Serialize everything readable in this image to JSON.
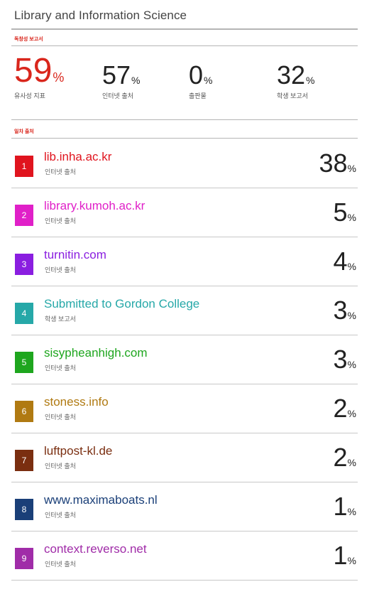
{
  "document": {
    "title": "Library and Information Science"
  },
  "summary": {
    "section_label": "독창성 보고서",
    "similarity": {
      "value": "59",
      "unit": "%",
      "label": "유사성 지표"
    },
    "internet": {
      "value": "57",
      "unit": "%",
      "label": "인터넷 출처"
    },
    "publications": {
      "value": "0",
      "unit": "%",
      "label": "출판물"
    },
    "student": {
      "value": "32",
      "unit": "%",
      "label": "학생 보고서"
    }
  },
  "sources_section_label": "일차 출처",
  "sources": [
    {
      "index": "1",
      "name": "lib.inha.ac.kr",
      "type": "인터넷 출처",
      "percent": "38",
      "color": "#e0141e"
    },
    {
      "index": "2",
      "name": "library.kumoh.ac.kr",
      "type": "인터넷 출처",
      "percent": "5",
      "color": "#e020c8"
    },
    {
      "index": "3",
      "name": "turnitin.com",
      "type": "인터넷 출처",
      "percent": "4",
      "color": "#8a1ee0"
    },
    {
      "index": "4",
      "name": "Submitted to Gordon College",
      "type": "학생 보고서",
      "percent": "3",
      "color": "#26a8a8"
    },
    {
      "index": "5",
      "name": "sisypheanhigh.com",
      "type": "인터넷 출처",
      "percent": "3",
      "color": "#1ea61e"
    },
    {
      "index": "6",
      "name": "stoness.info",
      "type": "인터넷 출처",
      "percent": "2",
      "color": "#b07a12"
    },
    {
      "index": "7",
      "name": "luftpost-kl.de",
      "type": "인터넷 출처",
      "percent": "2",
      "color": "#7a2e10"
    },
    {
      "index": "8",
      "name": "www.maximaboats.nl",
      "type": "인터넷 출처",
      "percent": "1",
      "color": "#1a3f78"
    },
    {
      "index": "9",
      "name": "context.reverso.net",
      "type": "인터넷 출처",
      "percent": "1",
      "color": "#a02ca8"
    }
  ],
  "percent_unit": "%"
}
